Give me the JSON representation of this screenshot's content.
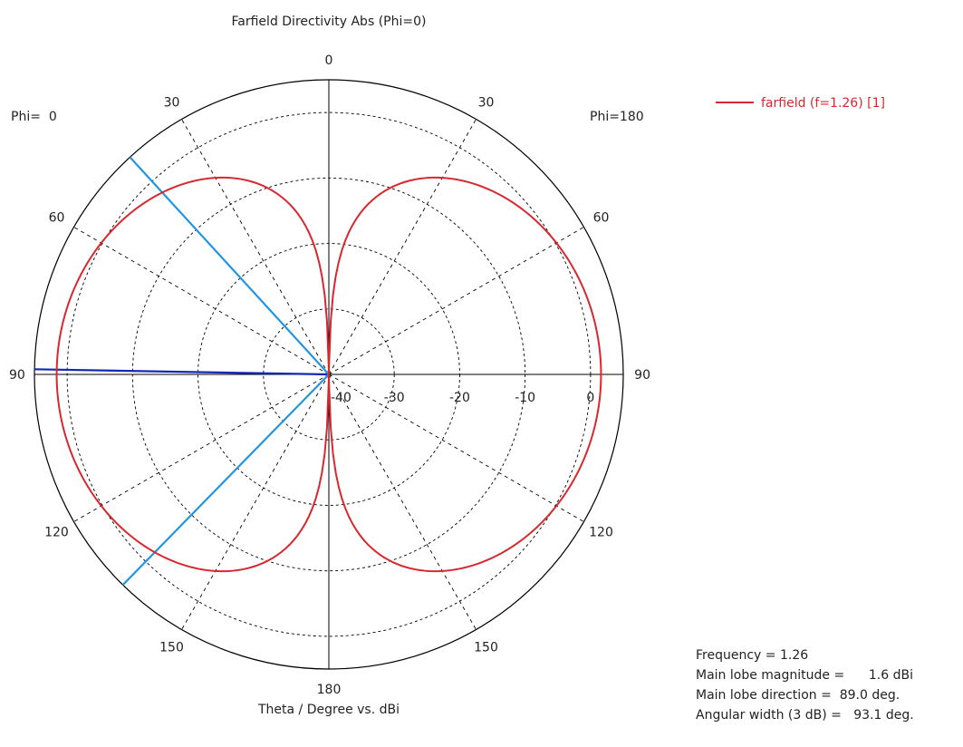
{
  "chart_data": {
    "type": "polar",
    "title": "Farfield Directivity Abs (Phi=0)",
    "xlabel": "Theta / Degree vs. dBi",
    "left_label": "Phi=  0",
    "right_label": "Phi=180",
    "radial_range": [
      -40,
      5
    ],
    "radial_ticks": [
      "-40",
      "-30",
      "-20",
      "-10",
      "0"
    ],
    "angle_labels": [
      "0",
      "30",
      "60",
      "90",
      "120",
      "150",
      "180"
    ],
    "grid": true,
    "legend_position": "top-right",
    "series": [
      {
        "name": "farfield (f=1.26) [1]",
        "color": "#d8282f",
        "model": "dipole",
        "theta_deg": [
          0,
          10,
          20,
          30,
          40,
          50,
          60,
          70,
          80,
          90
        ],
        "dBi": [
          -40,
          -13.6,
          -7.7,
          -4.4,
          -2.3,
          -0.9,
          0.1,
          0.8,
          1.2,
          1.6
        ]
      }
    ],
    "markers": [
      {
        "name": "main-lobe-direction",
        "theta_deg": 89.0,
        "color": "#1428b4"
      },
      {
        "name": "3db-beam-edge-upper",
        "theta_deg": 42.5,
        "color": "#2196e0"
      },
      {
        "name": "3db-beam-edge-lower",
        "theta_deg": 135.6,
        "color": "#2196e0"
      }
    ]
  },
  "info": {
    "frequency": "Frequency = 1.26",
    "magnitude": "Main lobe magnitude =      1.6 dBi",
    "direction": "Main lobe direction =  89.0 deg.",
    "width": "Angular width (3 dB) =   93.1 deg."
  }
}
